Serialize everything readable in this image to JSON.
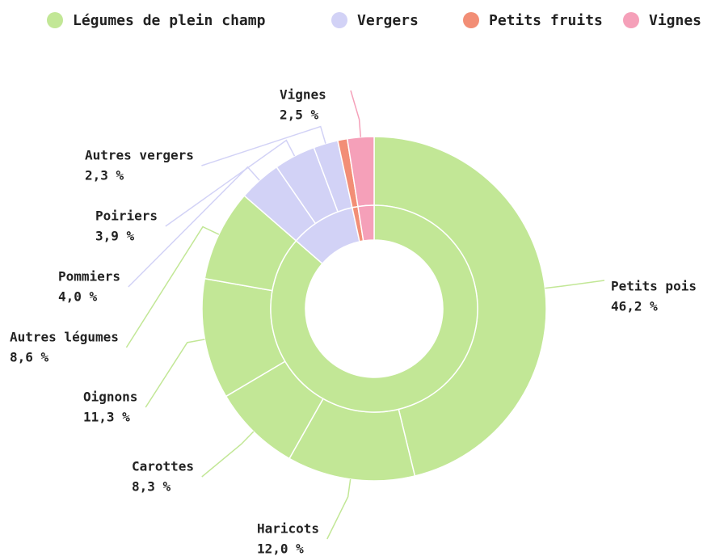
{
  "chart_data": {
    "type": "sunburst",
    "groups": [
      {
        "name": "Légumes de plein champ",
        "color": "#c2e796",
        "children": [
          {
            "name": "Petits pois",
            "value": 46.2,
            "value_label": "46,2 %"
          },
          {
            "name": "Haricots",
            "value": 12.0,
            "value_label": "12,0 %"
          },
          {
            "name": "Carottes",
            "value": 8.3,
            "value_label": "8,3 %"
          },
          {
            "name": "Oignons",
            "value": 11.3,
            "value_label": "11,3 %"
          },
          {
            "name": "Autres légumes",
            "value": 8.6,
            "value_label": "8,6 %"
          }
        ]
      },
      {
        "name": "Vergers",
        "color": "#d2d2f6",
        "children": [
          {
            "name": "Pommiers",
            "value": 4.0,
            "value_label": "4,0 %"
          },
          {
            "name": "Poiriers",
            "value": 3.9,
            "value_label": "3,9 %"
          },
          {
            "name": "Autres vergers",
            "value": 2.3,
            "value_label": "2,3 %"
          }
        ]
      },
      {
        "name": "Petits fruits",
        "color": "#f28e76",
        "children": [
          {
            "value": 0.9
          }
        ]
      },
      {
        "name": "Vignes",
        "color": "#f5a0b9",
        "children": [
          {
            "name": "Vignes",
            "value": 2.5,
            "value_label": "2,5 %"
          }
        ]
      }
    ]
  }
}
